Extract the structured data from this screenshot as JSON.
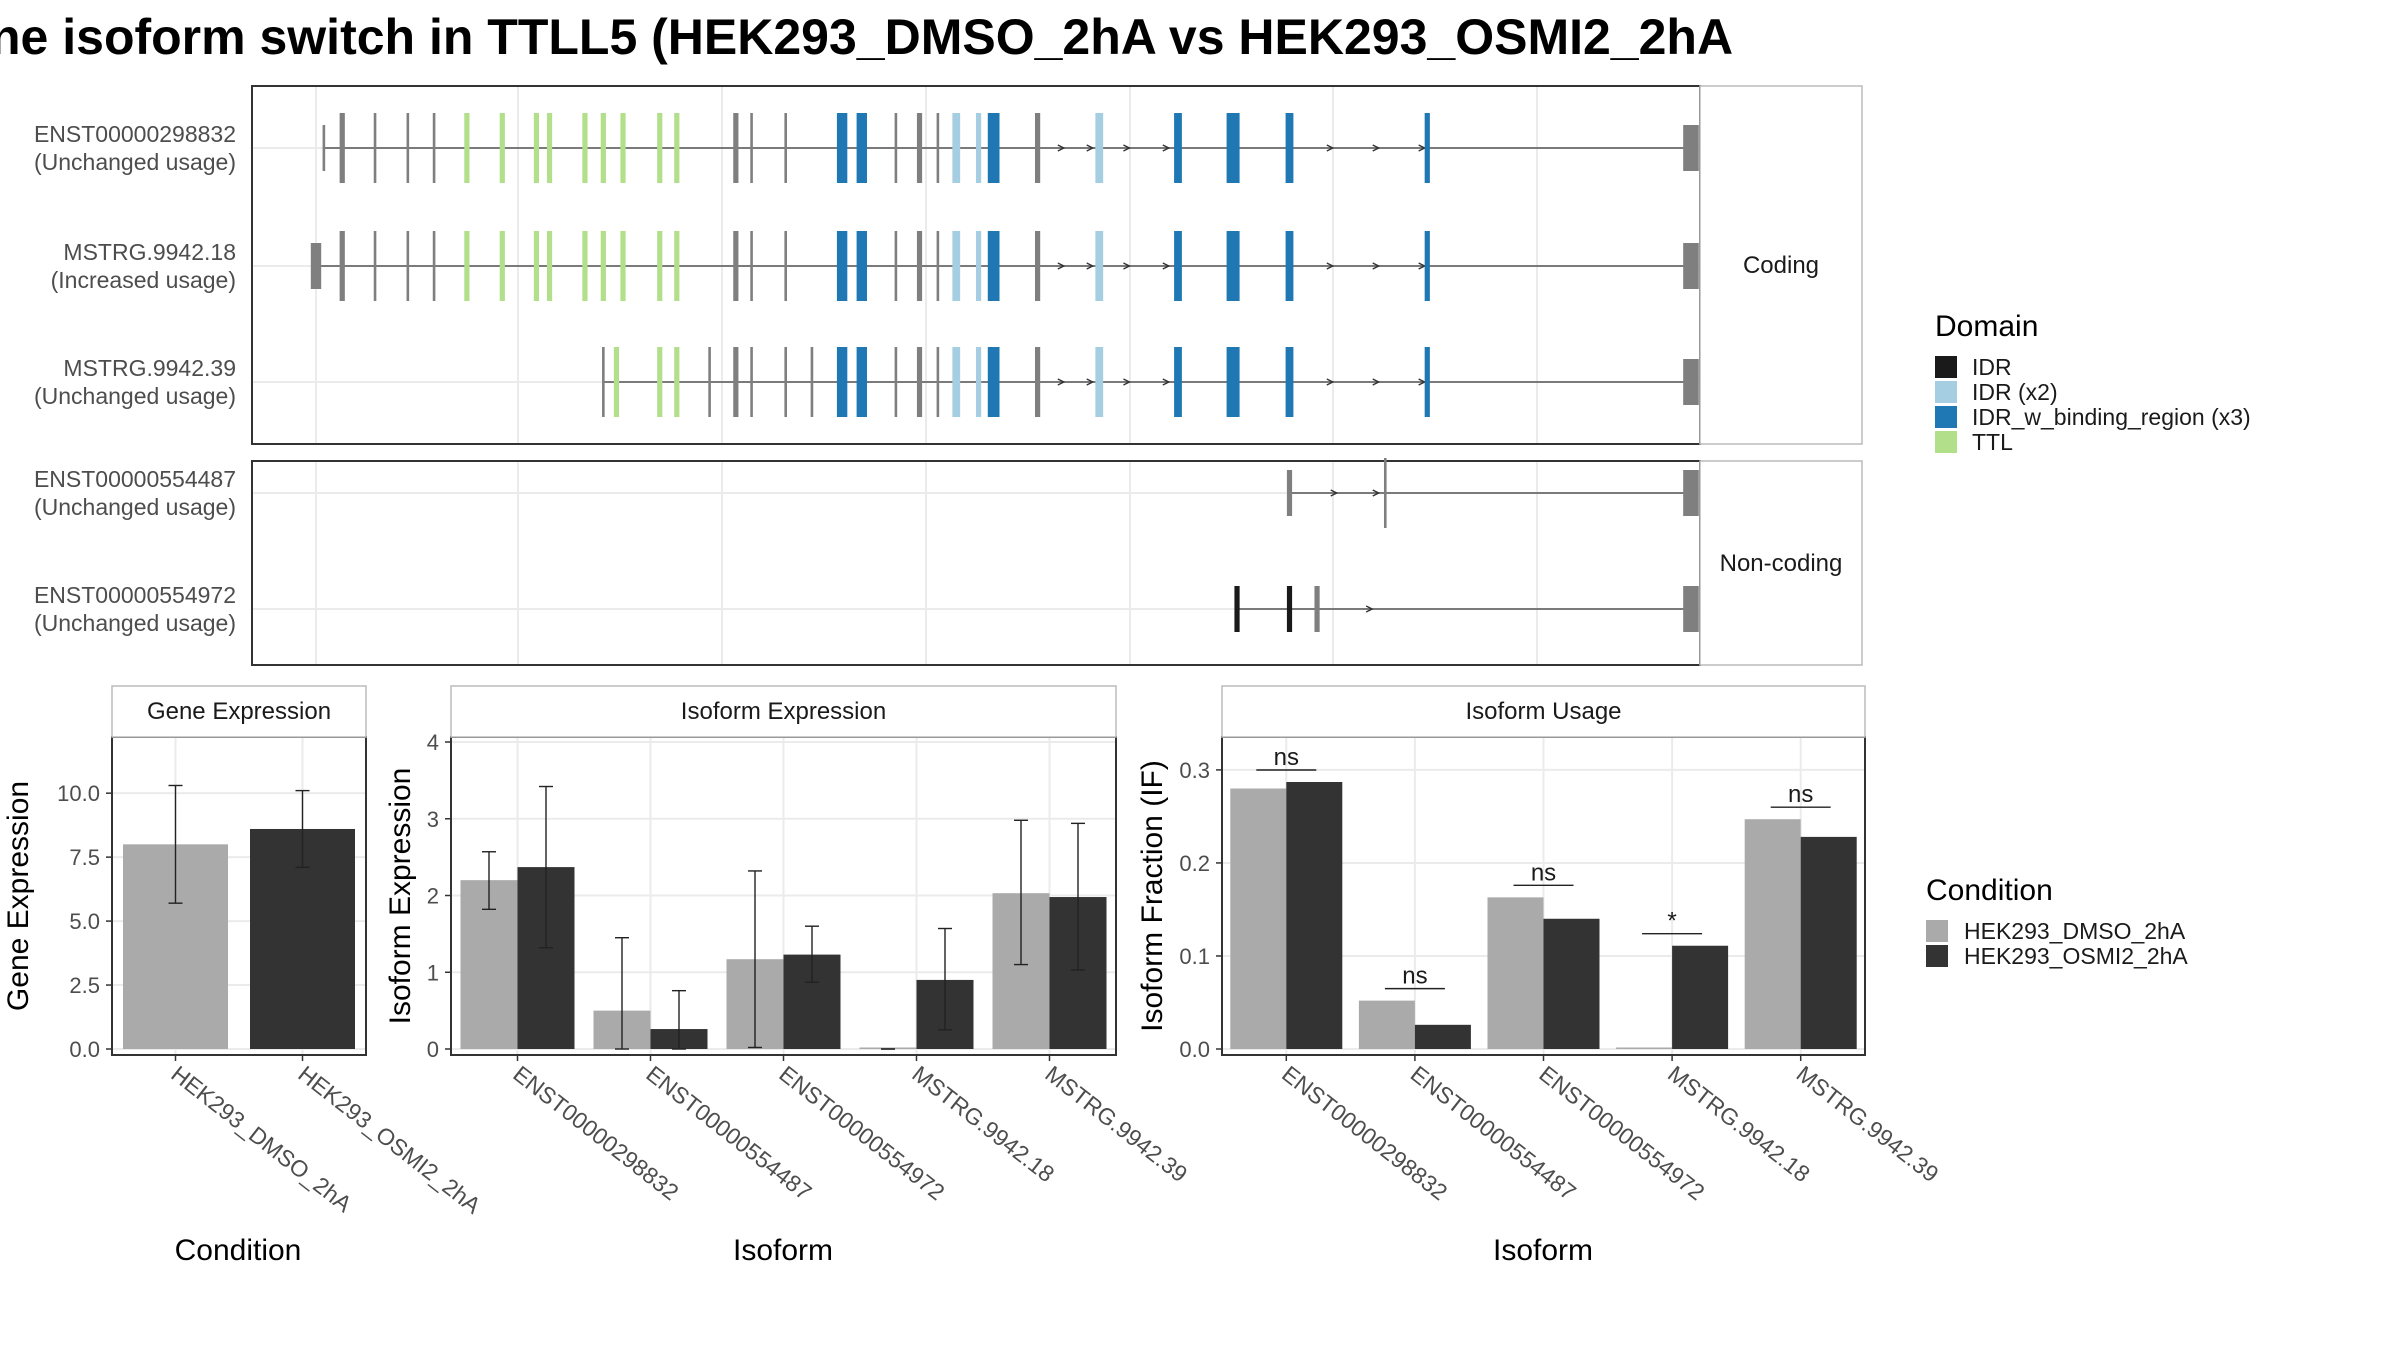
{
  "title": "ne isoform switch in TTLL5 (HEK293_DMSO_2hA vs HEK293_OSMI2_2hA",
  "colors": {
    "IDR": "#1a1a1a",
    "IDR (x2)": "#a6cee3",
    "IDR_w_binding_region (x3)": "#1f78b4",
    "TTL": "#b2df8a",
    "exon": "#7f7f7f",
    "cond1": "#aaaaaa",
    "cond2": "#333333"
  },
  "legends": {
    "domain": {
      "title": "Domain",
      "items": [
        "IDR",
        "IDR (x2)",
        "IDR_w_binding_region (x3)",
        "TTL"
      ]
    },
    "condition": {
      "title": "Condition",
      "items": [
        "HEK293_DMSO_2hA",
        "HEK293_OSMI2_2hA"
      ]
    }
  },
  "structure": {
    "panels": [
      {
        "label": "Coding",
        "transcripts": [
          {
            "name": "ENST00000298832",
            "usage": "(Unchanged usage)",
            "span": [
              6,
              1052
            ],
            "exons": [
              [
                6,
                1,
                "exon",
                1
              ],
              [
                20,
                2,
                "exon",
                0
              ],
              [
                45,
                1,
                "exon",
                0
              ],
              [
                70,
                1,
                "exon",
                0
              ],
              [
                90,
                1,
                "exon",
                0
              ],
              [
                115,
                2,
                "TTL",
                0
              ],
              [
                142,
                2,
                "TTL",
                0
              ],
              [
                168,
                2,
                "TTL",
                0
              ],
              [
                178,
                2,
                "TTL",
                0
              ],
              [
                205,
                2,
                "TTL",
                0
              ],
              [
                219,
                2,
                "TTL",
                0
              ],
              [
                234,
                2,
                "TTL",
                0
              ],
              [
                262,
                2,
                "TTL",
                0
              ],
              [
                275,
                2,
                "TTL",
                0
              ],
              [
                320,
                2,
                "exon",
                0
              ],
              [
                332,
                1,
                "exon",
                0
              ],
              [
                358,
                1,
                "exon",
                0
              ],
              [
                401,
                4,
                "IDRB",
                0
              ],
              [
                416,
                4,
                "IDRB",
                0
              ],
              [
                442,
                1,
                "exon",
                0
              ],
              [
                460,
                2,
                "exon",
                0
              ],
              [
                474,
                1,
                "exon",
                0
              ],
              [
                488,
                3,
                "IDR2",
                0
              ],
              [
                505,
                2,
                "IDR2",
                0
              ],
              [
                515,
                3,
                "IDRB",
                0
              ],
              [
                518,
                3,
                "IDRB",
                0
              ],
              [
                550,
                2,
                "exon",
                0
              ],
              [
                597,
                3,
                "IDR2",
                0
              ],
              [
                657,
                3,
                "IDRB",
                0
              ],
              [
                699,
                5,
                "IDRB",
                0
              ],
              [
                742,
                3,
                "IDRB",
                0
              ],
              [
                847,
                2,
                "IDRB",
                0
              ],
              [
                1048,
                6,
                "exon",
                1
              ]
            ],
            "arrows": [
              570,
              592,
              620,
              650,
              775,
              810,
              845
            ]
          },
          {
            "name": "MSTRG.9942.18",
            "usage": "(Increased usage)",
            "span": [
              0,
              1052
            ],
            "exons": [
              [
                0,
                4,
                "exon",
                1
              ],
              [
                20,
                2,
                "exon",
                0
              ],
              [
                45,
                1,
                "exon",
                0
              ],
              [
                70,
                1,
                "exon",
                0
              ],
              [
                90,
                1,
                "exon",
                0
              ],
              [
                115,
                2,
                "TTL",
                0
              ],
              [
                142,
                2,
                "TTL",
                0
              ],
              [
                168,
                2,
                "TTL",
                0
              ],
              [
                178,
                2,
                "TTL",
                0
              ],
              [
                205,
                2,
                "TTL",
                0
              ],
              [
                219,
                2,
                "TTL",
                0
              ],
              [
                234,
                2,
                "TTL",
                0
              ],
              [
                262,
                2,
                "TTL",
                0
              ],
              [
                275,
                2,
                "TTL",
                0
              ],
              [
                320,
                2,
                "exon",
                0
              ],
              [
                332,
                1,
                "exon",
                0
              ],
              [
                358,
                1,
                "exon",
                0
              ],
              [
                401,
                4,
                "IDRB",
                0
              ],
              [
                416,
                4,
                "IDRB",
                0
              ],
              [
                442,
                1,
                "exon",
                0
              ],
              [
                460,
                2,
                "exon",
                0
              ],
              [
                474,
                1,
                "exon",
                0
              ],
              [
                488,
                3,
                "IDR2",
                0
              ],
              [
                505,
                2,
                "IDR2",
                0
              ],
              [
                515,
                3,
                "IDRB",
                0
              ],
              [
                518,
                3,
                "IDRB",
                0
              ],
              [
                550,
                2,
                "exon",
                0
              ],
              [
                597,
                3,
                "IDR2",
                0
              ],
              [
                657,
                3,
                "IDRB",
                0
              ],
              [
                699,
                5,
                "IDRB",
                0
              ],
              [
                742,
                3,
                "IDRB",
                0
              ],
              [
                847,
                2,
                "IDRB",
                0
              ],
              [
                1048,
                6,
                "exon",
                1
              ]
            ],
            "arrows": [
              570,
              592,
              620,
              650,
              775,
              810,
              845
            ]
          },
          {
            "name": "MSTRG.9942.39",
            "usage": "(Unchanged usage)",
            "span": [
              219,
              1052
            ],
            "exons": [
              [
                219,
                1,
                "exon",
                0
              ],
              [
                229,
                2,
                "TTL",
                0
              ],
              [
                262,
                2,
                "TTL",
                0
              ],
              [
                275,
                2,
                "TTL",
                0
              ],
              [
                300,
                1,
                "exon",
                0
              ],
              [
                320,
                2,
                "exon",
                0
              ],
              [
                332,
                1,
                "exon",
                0
              ],
              [
                358,
                1,
                "exon",
                0
              ],
              [
                378,
                1,
                "exon",
                0
              ],
              [
                401,
                4,
                "IDRB",
                0
              ],
              [
                416,
                4,
                "IDRB",
                0
              ],
              [
                442,
                1,
                "exon",
                0
              ],
              [
                460,
                2,
                "exon",
                0
              ],
              [
                474,
                1,
                "exon",
                0
              ],
              [
                488,
                3,
                "IDR2",
                0
              ],
              [
                505,
                2,
                "IDR2",
                0
              ],
              [
                515,
                3,
                "IDRB",
                0
              ],
              [
                518,
                3,
                "IDRB",
                0
              ],
              [
                550,
                2,
                "exon",
                0
              ],
              [
                597,
                3,
                "IDR2",
                0
              ],
              [
                657,
                3,
                "IDRB",
                0
              ],
              [
                699,
                5,
                "IDRB",
                0
              ],
              [
                742,
                3,
                "IDRB",
                0
              ],
              [
                847,
                2,
                "IDRB",
                0
              ],
              [
                1048,
                6,
                "exon",
                1
              ]
            ],
            "arrows": [
              570,
              592,
              620,
              650,
              775,
              810,
              845
            ]
          }
        ]
      },
      {
        "label": "Non-coding",
        "transcripts": [
          {
            "name": "ENST00000554487",
            "usage": "(Unchanged usage)",
            "span": [
              742,
              1052
            ],
            "exons": [
              [
                742,
                2,
                "exon",
                1
              ],
              [
                815,
                1,
                "exon",
                0
              ],
              [
                1048,
                6,
                "exon",
                1
              ]
            ],
            "arrows": [
              778,
              810
            ]
          },
          {
            "name": "ENST00000554972",
            "usage": "(Unchanged usage)",
            "span": [
              702,
              1052
            ],
            "exons": [
              [
                702,
                2,
                "IDR",
                1
              ],
              [
                742,
                2,
                "IDR",
                1
              ],
              [
                763,
                2,
                "exon",
                1
              ],
              [
                1048,
                6,
                "exon",
                1
              ]
            ],
            "arrows": [
              805
            ]
          }
        ]
      }
    ]
  },
  "chart_data": [
    {
      "type": "bar",
      "title": "Gene Expression",
      "xlabel": "Condition",
      "ylabel": "Gene Expression",
      "ylim": [
        0,
        12
      ],
      "yticks": [
        "0.0",
        "2.5",
        "5.0",
        "7.5",
        "10.0"
      ],
      "categories": [
        "HEK293_DMSO_2hA",
        "HEK293_OSMI2_2hA"
      ],
      "series": [
        {
          "name": "HEK293_DMSO_2hA",
          "values": [
            8.0,
            null
          ],
          "err": [
            [
              5.7,
              10.3
            ],
            null
          ]
        },
        {
          "name": "HEK293_OSMI2_2hA",
          "values": [
            null,
            8.6
          ],
          "err": [
            null,
            [
              7.1,
              10.1
            ]
          ]
        }
      ]
    },
    {
      "type": "bar",
      "title": "Isoform Expression",
      "xlabel": "Isoform",
      "ylabel": "Isoform Expression",
      "ylim": [
        0,
        4
      ],
      "yticks": [
        "0",
        "1",
        "2",
        "3",
        "4"
      ],
      "categories": [
        "ENST00000298832",
        "ENST00000554487",
        "ENST00000554972",
        "MSTRG.9942.18",
        "MSTRG.9942.39"
      ],
      "series": [
        {
          "name": "HEK293_DMSO_2hA",
          "values": [
            2.2,
            0.5,
            1.17,
            0.0,
            2.03
          ],
          "err": [
            [
              1.82,
              2.57
            ],
            [
              0.0,
              1.45
            ],
            [
              0.02,
              2.32
            ],
            [
              0.0,
              0.0
            ],
            [
              1.1,
              2.98
            ]
          ]
        },
        {
          "name": "HEK293_OSMI2_2hA",
          "values": [
            2.37,
            0.26,
            1.23,
            0.9,
            1.98
          ],
          "err": [
            [
              1.32,
              3.42
            ],
            [
              0.0,
              0.76
            ],
            [
              0.87,
              1.6
            ],
            [
              0.25,
              1.57
            ],
            [
              1.03,
              2.94
            ]
          ]
        }
      ]
    },
    {
      "type": "bar",
      "title": "Isoform Usage",
      "xlabel": "Isoform",
      "ylabel": "Isoform Fraction (IF)",
      "ylim": [
        0,
        0.33
      ],
      "yticks": [
        "0.0",
        "0.1",
        "0.2",
        "0.3"
      ],
      "categories": [
        "ENST00000298832",
        "ENST00000554487",
        "ENST00000554972",
        "MSTRG.9942.18",
        "MSTRG.9942.39"
      ],
      "series": [
        {
          "name": "HEK293_DMSO_2hA",
          "values": [
            0.28,
            0.052,
            0.163,
            0.0,
            0.247
          ]
        },
        {
          "name": "HEK293_OSMI2_2hA",
          "values": [
            0.287,
            0.026,
            0.14,
            0.111,
            0.228
          ]
        }
      ],
      "annotations": [
        "ns",
        "ns",
        "ns",
        "*",
        "ns"
      ]
    }
  ]
}
